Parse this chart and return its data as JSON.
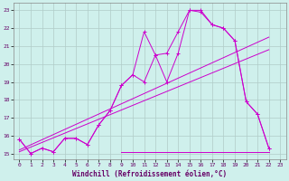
{
  "xlabel": "Windchill (Refroidissement éolien,°C)",
  "xlim": [
    -0.5,
    23.5
  ],
  "ylim": [
    14.7,
    23.4
  ],
  "yticks": [
    15,
    16,
    17,
    18,
    19,
    20,
    21,
    22,
    23
  ],
  "xticks": [
    0,
    1,
    2,
    3,
    4,
    5,
    6,
    7,
    8,
    9,
    10,
    11,
    12,
    13,
    14,
    15,
    16,
    17,
    18,
    19,
    20,
    21,
    22,
    23
  ],
  "bg_color": "#cff0ec",
  "grid_color": "#b0ccc8",
  "line_color": "#cc00cc",
  "line_jagged": [
    [
      0,
      15.8
    ],
    [
      1,
      15.0
    ],
    [
      2,
      15.3
    ],
    [
      3,
      15.1
    ],
    [
      4,
      15.85
    ],
    [
      5,
      15.85
    ],
    [
      6,
      15.5
    ],
    [
      7,
      16.6
    ],
    [
      8,
      17.4
    ],
    [
      9,
      18.8
    ],
    [
      10,
      19.4
    ],
    [
      11,
      21.8
    ],
    [
      12,
      20.5
    ],
    [
      13,
      19.0
    ],
    [
      14,
      20.6
    ],
    [
      15,
      23.0
    ],
    [
      16,
      23.0
    ],
    [
      17,
      22.2
    ],
    [
      18,
      22.0
    ],
    [
      19,
      21.3
    ],
    [
      20,
      17.9
    ],
    [
      21,
      17.2
    ],
    [
      22,
      15.3
    ]
  ],
  "line_smooth": [
    [
      0,
      15.8
    ],
    [
      1,
      15.0
    ],
    [
      2,
      15.3
    ],
    [
      3,
      15.1
    ],
    [
      4,
      15.85
    ],
    [
      5,
      15.85
    ],
    [
      6,
      15.5
    ],
    [
      7,
      16.6
    ],
    [
      8,
      17.4
    ],
    [
      9,
      18.8
    ],
    [
      10,
      19.4
    ],
    [
      11,
      19.0
    ],
    [
      12,
      20.5
    ],
    [
      13,
      20.6
    ],
    [
      14,
      21.8
    ],
    [
      15,
      23.0
    ],
    [
      16,
      22.9
    ],
    [
      17,
      22.2
    ],
    [
      18,
      22.0
    ],
    [
      19,
      21.3
    ],
    [
      20,
      17.9
    ],
    [
      21,
      17.2
    ],
    [
      22,
      15.3
    ]
  ],
  "line_reg1": [
    [
      0,
      15.2
    ],
    [
      22,
      21.5
    ]
  ],
  "line_reg2": [
    [
      0,
      15.1
    ],
    [
      22,
      20.8
    ]
  ],
  "line_flat": [
    [
      9,
      15.1
    ],
    [
      22,
      15.1
    ]
  ]
}
